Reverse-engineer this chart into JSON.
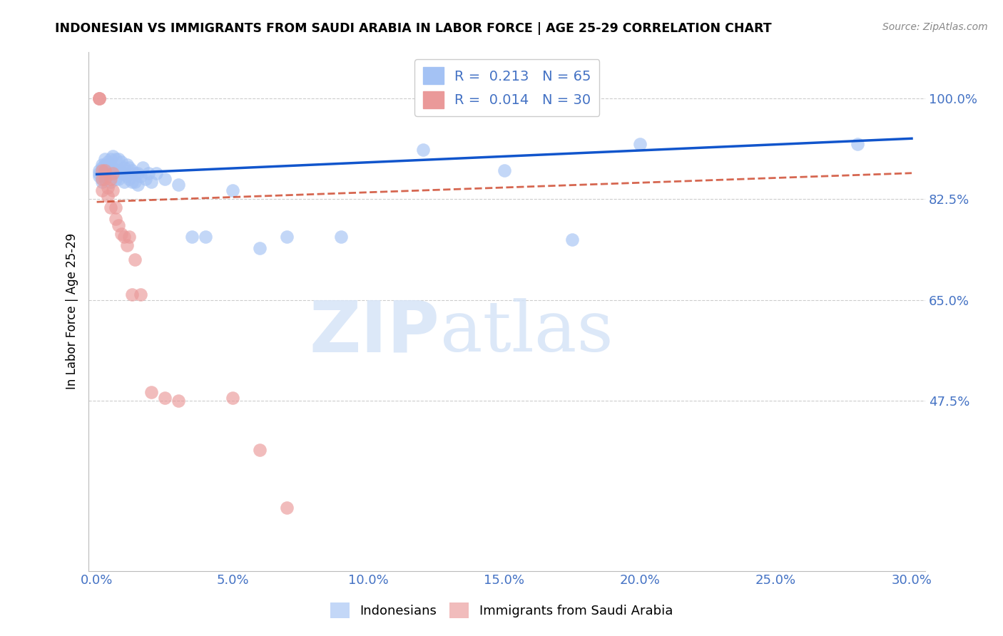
{
  "title": "INDONESIAN VS IMMIGRANTS FROM SAUDI ARABIA IN LABOR FORCE | AGE 25-29 CORRELATION CHART",
  "source": "Source: ZipAtlas.com",
  "ylabel": "In Labor Force | Age 25-29",
  "xlabel": "",
  "xlim": [
    -0.003,
    0.305
  ],
  "ylim": [
    0.18,
    1.08
  ],
  "yticks": [
    1.0,
    0.825,
    0.65,
    0.475
  ],
  "ytick_labels": [
    "100.0%",
    "82.5%",
    "65.0%",
    "47.5%"
  ],
  "xticks": [
    0.0,
    0.05,
    0.1,
    0.15,
    0.2,
    0.25,
    0.3
  ],
  "xtick_labels": [
    "0.0%",
    "5.0%",
    "10.0%",
    "15.0%",
    "20.0%",
    "25.0%",
    "30.0%"
  ],
  "blue_R": 0.213,
  "blue_N": 65,
  "pink_R": 0.014,
  "pink_N": 30,
  "blue_color": "#a4c2f4",
  "pink_color": "#ea9999",
  "trend_blue_color": "#1155cc",
  "trend_pink_color": "#cc4125",
  "watermark_zip": "ZIP",
  "watermark_atlas": "atlas",
  "legend_label_blue": "Indonesians",
  "legend_label_pink": "Immigrants from Saudi Arabia",
  "blue_x": [
    0.001,
    0.001,
    0.001,
    0.002,
    0.002,
    0.002,
    0.002,
    0.002,
    0.002,
    0.003,
    0.003,
    0.003,
    0.003,
    0.003,
    0.004,
    0.004,
    0.004,
    0.004,
    0.005,
    0.005,
    0.005,
    0.005,
    0.006,
    0.006,
    0.006,
    0.007,
    0.007,
    0.007,
    0.008,
    0.008,
    0.008,
    0.009,
    0.009,
    0.01,
    0.01,
    0.01,
    0.011,
    0.011,
    0.012,
    0.012,
    0.013,
    0.013,
    0.014,
    0.014,
    0.015,
    0.015,
    0.016,
    0.017,
    0.018,
    0.019,
    0.02,
    0.022,
    0.025,
    0.03,
    0.035,
    0.04,
    0.05,
    0.06,
    0.07,
    0.09,
    0.12,
    0.15,
    0.175,
    0.2,
    0.28
  ],
  "blue_y": [
    0.875,
    0.87,
    0.865,
    0.885,
    0.88,
    0.875,
    0.87,
    0.86,
    0.855,
    0.895,
    0.885,
    0.875,
    0.87,
    0.865,
    0.89,
    0.885,
    0.875,
    0.865,
    0.895,
    0.88,
    0.87,
    0.855,
    0.9,
    0.88,
    0.87,
    0.895,
    0.875,
    0.86,
    0.895,
    0.875,
    0.86,
    0.89,
    0.87,
    0.88,
    0.87,
    0.855,
    0.885,
    0.865,
    0.88,
    0.86,
    0.875,
    0.855,
    0.87,
    0.855,
    0.87,
    0.85,
    0.865,
    0.88,
    0.86,
    0.87,
    0.855,
    0.87,
    0.86,
    0.85,
    0.76,
    0.76,
    0.84,
    0.74,
    0.76,
    0.76,
    0.91,
    0.875,
    0.755,
    0.92,
    0.92
  ],
  "pink_x": [
    0.001,
    0.001,
    0.001,
    0.002,
    0.002,
    0.002,
    0.003,
    0.003,
    0.004,
    0.004,
    0.005,
    0.005,
    0.006,
    0.006,
    0.007,
    0.007,
    0.008,
    0.009,
    0.01,
    0.011,
    0.012,
    0.013,
    0.014,
    0.016,
    0.02,
    0.025,
    0.03,
    0.05,
    0.06,
    0.07
  ],
  "pink_y": [
    1.0,
    1.0,
    1.0,
    0.875,
    0.86,
    0.84,
    0.875,
    0.86,
    0.845,
    0.83,
    0.86,
    0.81,
    0.87,
    0.84,
    0.81,
    0.79,
    0.78,
    0.765,
    0.76,
    0.745,
    0.76,
    0.66,
    0.72,
    0.66,
    0.49,
    0.48,
    0.475,
    0.48,
    0.39,
    0.29
  ],
  "blue_trend_x0": 0.0,
  "blue_trend_x1": 0.3,
  "blue_trend_y0": 0.868,
  "blue_trend_y1": 0.93,
  "pink_trend_x0": 0.0,
  "pink_trend_x1": 0.3,
  "pink_trend_y0": 0.82,
  "pink_trend_y1": 0.87
}
